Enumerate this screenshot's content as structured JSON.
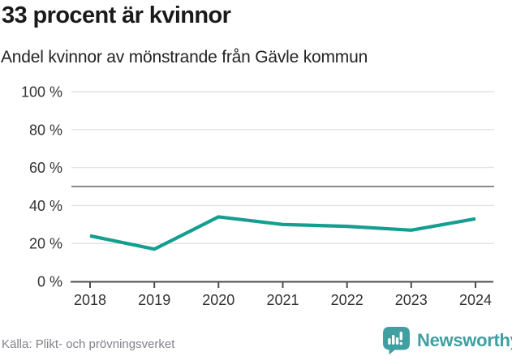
{
  "chart_data": {
    "type": "line",
    "title": "33 procent är kvinnor",
    "subtitle": "Andel kvinnor av mönstrande från Gävle kommun",
    "categories": [
      "2018",
      "2019",
      "2020",
      "2021",
      "2022",
      "2023",
      "2024"
    ],
    "series": [
      {
        "values": [
          24,
          17,
          34,
          30,
          29,
          27,
          33
        ]
      }
    ],
    "unit": "%",
    "ylim": [
      0,
      100
    ],
    "yticks": [
      0,
      20,
      40,
      60,
      80,
      100
    ],
    "ytick_labels": [
      "0 %",
      "20 %",
      "40 %",
      "60 %",
      "80 %",
      "100 %"
    ],
    "reference_line": {
      "value": 50
    },
    "grid": "horizontal",
    "legend": "none",
    "colors": {
      "line": "#149e8f",
      "grid": "#e2e2e2",
      "reference": "#8a8a8e",
      "axis": "#4d4d4d",
      "tick_label": "#333333"
    }
  },
  "footer": {
    "source": "Källa: Plikt- och prövningsverket",
    "brand": "Newsworthy",
    "brand_color": "#3f9fa1"
  }
}
